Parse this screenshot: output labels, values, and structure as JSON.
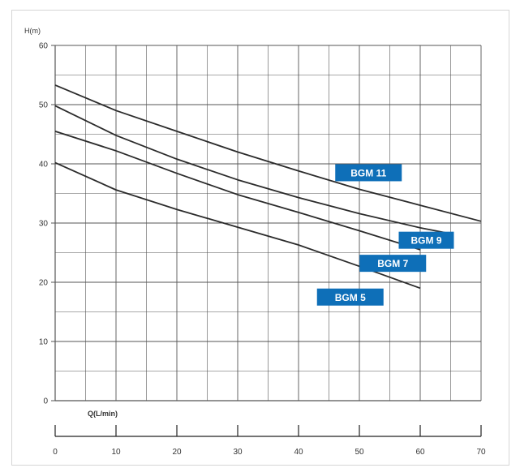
{
  "chart_data": {
    "type": "line",
    "ylabel": "H(m)",
    "xlabel": "Q(L/min)",
    "xlim": [
      0,
      70
    ],
    "ylim": [
      0,
      60
    ],
    "x_ticks": [
      "0",
      "10",
      "20",
      "30",
      "40",
      "50",
      "60",
      "70"
    ],
    "y_ticks": [
      "0",
      "10",
      "20",
      "30",
      "40",
      "50",
      "60"
    ],
    "grid": true,
    "series": [
      {
        "name": "BGM 11",
        "x": [
          0,
          10,
          20,
          30,
          40,
          50,
          60,
          70
        ],
        "y": [
          53.3,
          49.0,
          45.5,
          42.0,
          38.8,
          35.7,
          33.0,
          30.3
        ]
      },
      {
        "name": "BGM 9",
        "x": [
          0,
          10,
          20,
          30,
          40,
          50,
          60,
          65
        ],
        "y": [
          49.8,
          44.8,
          40.8,
          37.3,
          34.3,
          31.6,
          29.2,
          28.2
        ]
      },
      {
        "name": "BGM 7",
        "x": [
          0,
          10,
          20,
          30,
          40,
          50,
          60
        ],
        "y": [
          45.5,
          42.2,
          38.4,
          34.8,
          31.8,
          28.7,
          25.5
        ]
      },
      {
        "name": "BGM 5",
        "x": [
          0,
          10,
          20,
          30,
          40,
          50,
          60
        ],
        "y": [
          40.2,
          35.6,
          32.3,
          29.3,
          26.3,
          22.7,
          19.0
        ]
      }
    ],
    "label_color": "#0e6fb8",
    "line_color": "#2b2b2b",
    "grid_color": "#555555"
  }
}
